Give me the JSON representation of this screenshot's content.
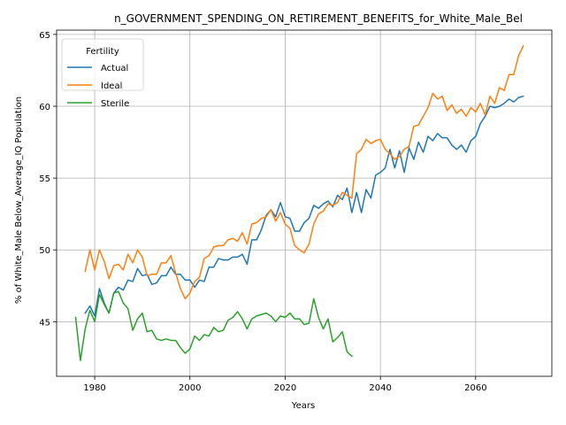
{
  "chart_data": {
    "type": "line",
    "title": "n_GOVERNMENT_SPENDING_ON_RETIREMENT_BENEFITS_for_White_Male_Bel",
    "xlabel": "Years",
    "ylabel": "% of White_Male Below_Average_IQ Population",
    "xlim": [
      1972,
      2076
    ],
    "ylim": [
      41.2,
      65.3
    ],
    "xticks": [
      1980,
      2000,
      2020,
      2040,
      2060
    ],
    "yticks": [
      45,
      50,
      55,
      60,
      65
    ],
    "grid": true,
    "legend": {
      "title": "Fertility",
      "placement": "top-left",
      "entries": [
        "Actual",
        "Ideal",
        "Sterile"
      ]
    },
    "series": [
      {
        "name": "Actual",
        "color": "#1f77b4",
        "x": [
          1978,
          1979,
          1980,
          1981,
          1982,
          1983,
          1984,
          1985,
          1986,
          1987,
          1988,
          1989,
          1990,
          1991,
          1992,
          1993,
          1994,
          1995,
          1996,
          1997,
          1998,
          1999,
          2000,
          2001,
          2002,
          2003,
          2004,
          2005,
          2006,
          2007,
          2008,
          2009,
          2010,
          2011,
          2012,
          2013,
          2014,
          2015,
          2016,
          2017,
          2018,
          2019,
          2020,
          2021,
          2022,
          2023,
          2024,
          2025,
          2026,
          2027,
          2028,
          2029,
          2030,
          2031,
          2032,
          2033,
          2034,
          2035,
          2036,
          2037,
          2038,
          2039,
          2040,
          2041,
          2042,
          2043,
          2044,
          2045,
          2046,
          2047,
          2048,
          2049,
          2050,
          2051,
          2052,
          2053,
          2054,
          2055,
          2056,
          2057,
          2058,
          2059,
          2060,
          2061,
          2062,
          2063,
          2064,
          2065,
          2066,
          2067,
          2068,
          2069,
          2070
        ],
        "values": [
          45.6,
          46.1,
          45.4,
          47.3,
          46.3,
          45.6,
          47.0,
          47.4,
          47.2,
          47.9,
          47.8,
          48.7,
          48.2,
          48.3,
          47.6,
          47.7,
          48.2,
          48.2,
          48.8,
          48.3,
          48.3,
          47.9,
          47.9,
          47.4,
          47.9,
          47.8,
          48.8,
          48.8,
          49.4,
          49.3,
          49.3,
          49.5,
          49.5,
          49.7,
          49.0,
          50.7,
          50.7,
          51.4,
          52.4,
          52.8,
          52.3,
          53.3,
          52.3,
          52.2,
          51.3,
          51.3,
          51.9,
          52.2,
          53.1,
          52.9,
          53.2,
          53.4,
          53.0,
          53.8,
          53.5,
          54.3,
          52.6,
          54.0,
          52.6,
          54.2,
          53.6,
          55.2,
          55.4,
          55.7,
          57.0,
          55.7,
          56.9,
          55.4,
          57.1,
          56.3,
          57.5,
          56.8,
          57.9,
          57.6,
          58.1,
          57.8,
          57.8,
          57.3,
          57.0,
          57.3,
          56.8,
          57.6,
          57.9,
          58.8,
          59.3,
          60.0,
          59.9,
          60.0,
          60.2,
          60.5,
          60.3,
          60.6,
          60.7
        ]
      },
      {
        "name": "Ideal",
        "color": "#ff7f0e",
        "x": [
          1978,
          1979,
          1980,
          1981,
          1982,
          1983,
          1984,
          1985,
          1986,
          1987,
          1988,
          1989,
          1990,
          1991,
          1992,
          1993,
          1994,
          1995,
          1996,
          1997,
          1998,
          1999,
          2000,
          2001,
          2002,
          2003,
          2004,
          2005,
          2006,
          2007,
          2008,
          2009,
          2010,
          2011,
          2012,
          2013,
          2014,
          2015,
          2016,
          2017,
          2018,
          2019,
          2020,
          2021,
          2022,
          2023,
          2024,
          2025,
          2026,
          2027,
          2028,
          2029,
          2030,
          2031,
          2032,
          2033,
          2034,
          2035,
          2036,
          2037,
          2038,
          2039,
          2040,
          2041,
          2042,
          2043,
          2044,
          2045,
          2046,
          2047,
          2048,
          2049,
          2050,
          2051,
          2052,
          2053,
          2054,
          2055,
          2056,
          2057,
          2058,
          2059,
          2060,
          2061,
          2062,
          2063,
          2064,
          2065,
          2066,
          2067,
          2068,
          2069,
          2070
        ],
        "values": [
          48.5,
          50.0,
          48.6,
          50.0,
          49.2,
          48.0,
          48.9,
          49.0,
          48.6,
          49.7,
          49.1,
          50.0,
          49.5,
          48.2,
          48.3,
          48.3,
          49.1,
          49.1,
          49.6,
          48.4,
          47.3,
          46.6,
          47.0,
          47.8,
          48.1,
          49.4,
          49.6,
          50.2,
          50.3,
          50.3,
          50.7,
          50.8,
          50.6,
          51.2,
          50.4,
          51.8,
          51.9,
          52.2,
          52.3,
          52.8,
          52.0,
          52.6,
          51.8,
          51.5,
          50.3,
          50.0,
          49.8,
          50.4,
          51.8,
          52.5,
          52.7,
          53.2,
          53.1,
          53.3,
          54.0,
          53.8,
          53.6,
          56.7,
          57.0,
          57.7,
          57.4,
          57.6,
          57.7,
          57.0,
          56.7,
          56.3,
          56.5,
          57.0,
          57.2,
          58.6,
          58.7,
          59.3,
          59.9,
          60.9,
          60.5,
          60.7,
          59.7,
          60.1,
          59.5,
          59.8,
          59.3,
          59.9,
          59.6,
          60.2,
          59.4,
          60.7,
          60.2,
          61.3,
          61.1,
          62.2,
          62.2,
          63.5,
          64.2
        ]
      },
      {
        "name": "Sterile",
        "color": "#2ca02c",
        "x": [
          1976,
          1977,
          1978,
          1979,
          1980,
          1981,
          1982,
          1983,
          1984,
          1985,
          1986,
          1987,
          1988,
          1989,
          1990,
          1991,
          1992,
          1993,
          1994,
          1995,
          1996,
          1997,
          1998,
          1999,
          2000,
          2001,
          2002,
          2003,
          2004,
          2005,
          2006,
          2007,
          2008,
          2009,
          2010,
          2011,
          2012,
          2013,
          2014,
          2015,
          2016,
          2017,
          2018,
          2019,
          2020,
          2021,
          2022,
          2023,
          2024,
          2025,
          2026,
          2027,
          2028,
          2029,
          2030,
          2031,
          2032,
          2033,
          2034
        ],
        "values": [
          45.3,
          42.3,
          44.5,
          45.8,
          45.0,
          46.9,
          46.2,
          45.6,
          47.0,
          47.1,
          46.3,
          45.9,
          44.4,
          45.2,
          45.6,
          44.3,
          44.4,
          43.8,
          43.7,
          43.8,
          43.7,
          43.7,
          43.2,
          42.8,
          43.1,
          44.0,
          43.7,
          44.1,
          44.0,
          44.6,
          44.3,
          44.4,
          45.1,
          45.3,
          45.7,
          45.2,
          44.5,
          45.2,
          45.4,
          45.5,
          45.6,
          45.4,
          45.0,
          45.4,
          45.3,
          45.6,
          45.2,
          45.2,
          44.8,
          44.9,
          46.6,
          45.3,
          44.5,
          45.2,
          43.6,
          43.9,
          44.3,
          42.9,
          42.6
        ]
      }
    ]
  }
}
